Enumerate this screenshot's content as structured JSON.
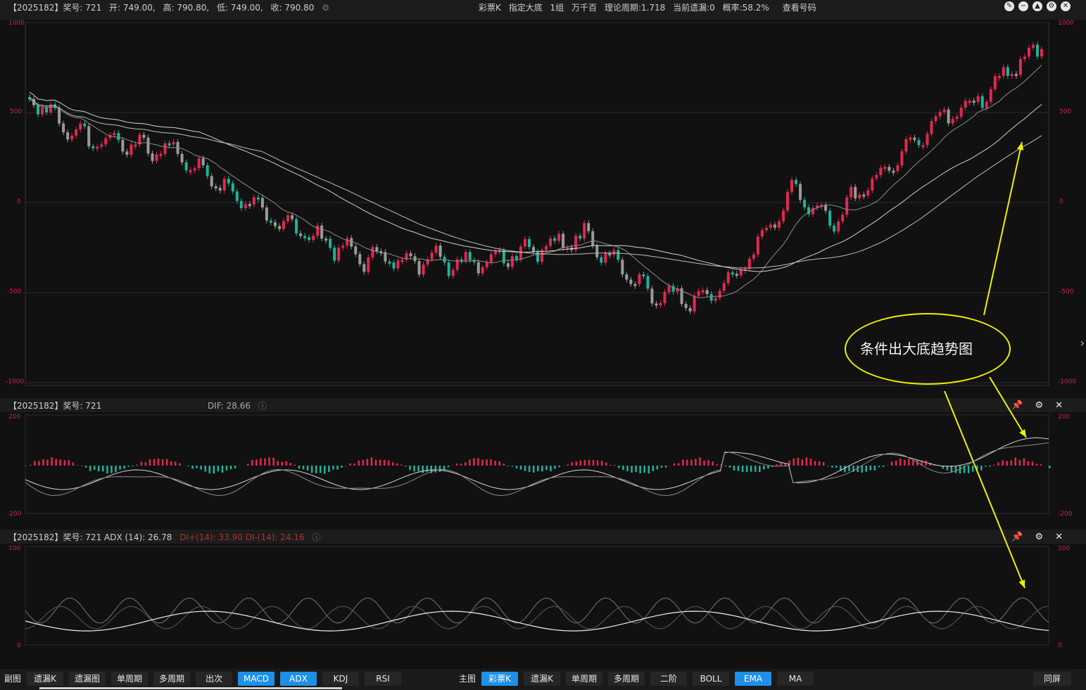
{
  "main_header": {
    "left": [
      "【2025182】奖号: 721",
      "开: 749.00,",
      "高: 790.80,",
      "低: 749.00,",
      "收: 790.80"
    ],
    "center": [
      "彩票K",
      "指定大底",
      "1组",
      "万千百",
      "理论周期:1.718",
      "当前遗漏:0",
      "概率:58.2%",
      "查看号码"
    ]
  },
  "main_axis": {
    "left": [
      "1000",
      "500",
      "0",
      "-500",
      "-1000"
    ],
    "right": [
      "1000",
      "500",
      "0",
      "-500",
      "-1000"
    ]
  },
  "macd_header": {
    "left": "【2025182】奖号: 721",
    "dif": "DIF: 28.66"
  },
  "macd_axis": {
    "left": [
      "200",
      "-200"
    ],
    "right": [
      "200",
      "-200"
    ]
  },
  "adx_header": {
    "left": "【2025182】奖号: 721 ADX (14): 26.78",
    "di": "DI+(14): 33.90 DI-(14): 24.16"
  },
  "adx_axis": {
    "left": [
      "100",
      "0"
    ],
    "right": [
      "100",
      "0"
    ]
  },
  "annotation": "条件出大底趋势图",
  "bottom_left": {
    "label": "副图",
    "buttons": [
      {
        "label": "遗漏K",
        "active": false
      },
      {
        "label": "遗漏图",
        "active": false
      },
      {
        "label": "单周期",
        "active": false
      },
      {
        "label": "多周期",
        "active": false
      },
      {
        "label": "出次",
        "active": false
      },
      {
        "label": "MACD",
        "active": true
      },
      {
        "label": "ADX",
        "active": true
      },
      {
        "label": "KDJ",
        "active": false
      },
      {
        "label": "RSI",
        "active": false
      }
    ]
  },
  "bottom_right": {
    "label": "主图",
    "buttons": [
      {
        "label": "彩票K",
        "active": true
      },
      {
        "label": "遗漏K",
        "active": false
      },
      {
        "label": "单周期",
        "active": false
      },
      {
        "label": "多周期",
        "active": false
      },
      {
        "label": "二阶",
        "active": false
      },
      {
        "label": "BOLL",
        "active": false
      },
      {
        "label": "EMA",
        "active": true
      },
      {
        "label": "MA",
        "active": false
      }
    ],
    "reset": "同屏"
  },
  "colors": {
    "up": "#e0294f",
    "down": "#1fb39a",
    "accent": "#1e90e8",
    "annotation": "#f0f000"
  }
}
